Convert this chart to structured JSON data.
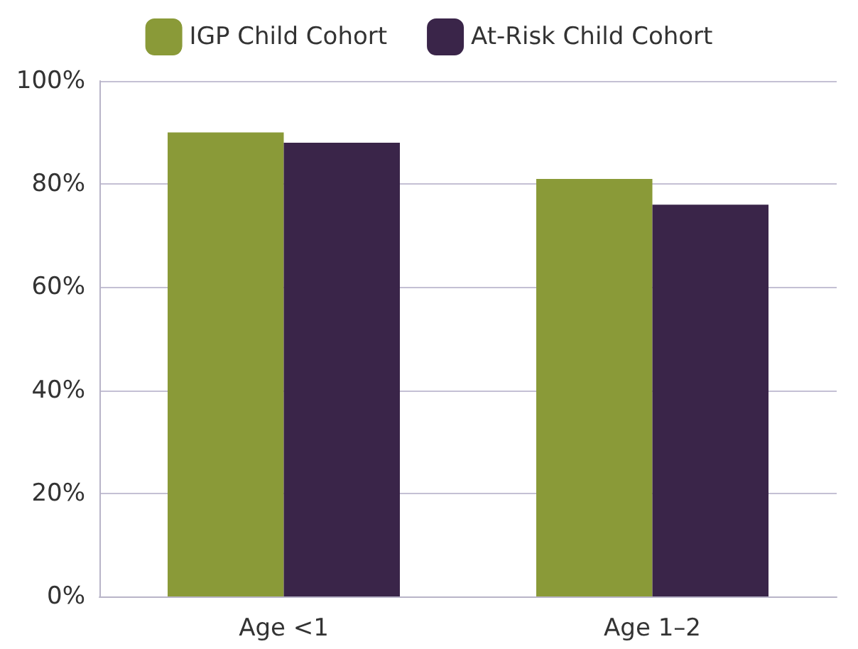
{
  "chart_data": {
    "type": "bar",
    "categories": [
      "Age <1",
      "Age 1–2"
    ],
    "series": [
      {
        "name": "IGP Child Cohort",
        "color": "#8a9a38",
        "values": [
          90,
          81
        ]
      },
      {
        "name": "At-Risk Child Cohort",
        "color": "#3a2549",
        "values": [
          88,
          76
        ]
      }
    ],
    "ylim": [
      0,
      100
    ],
    "yticks": [
      {
        "value": 0,
        "label": "0%"
      },
      {
        "value": 20,
        "label": "20%"
      },
      {
        "value": 40,
        "label": "40%"
      },
      {
        "value": 60,
        "label": "60%"
      },
      {
        "value": 80,
        "label": "80%"
      },
      {
        "value": 100,
        "label": "100%"
      }
    ],
    "grid": "y",
    "legend": "top"
  }
}
